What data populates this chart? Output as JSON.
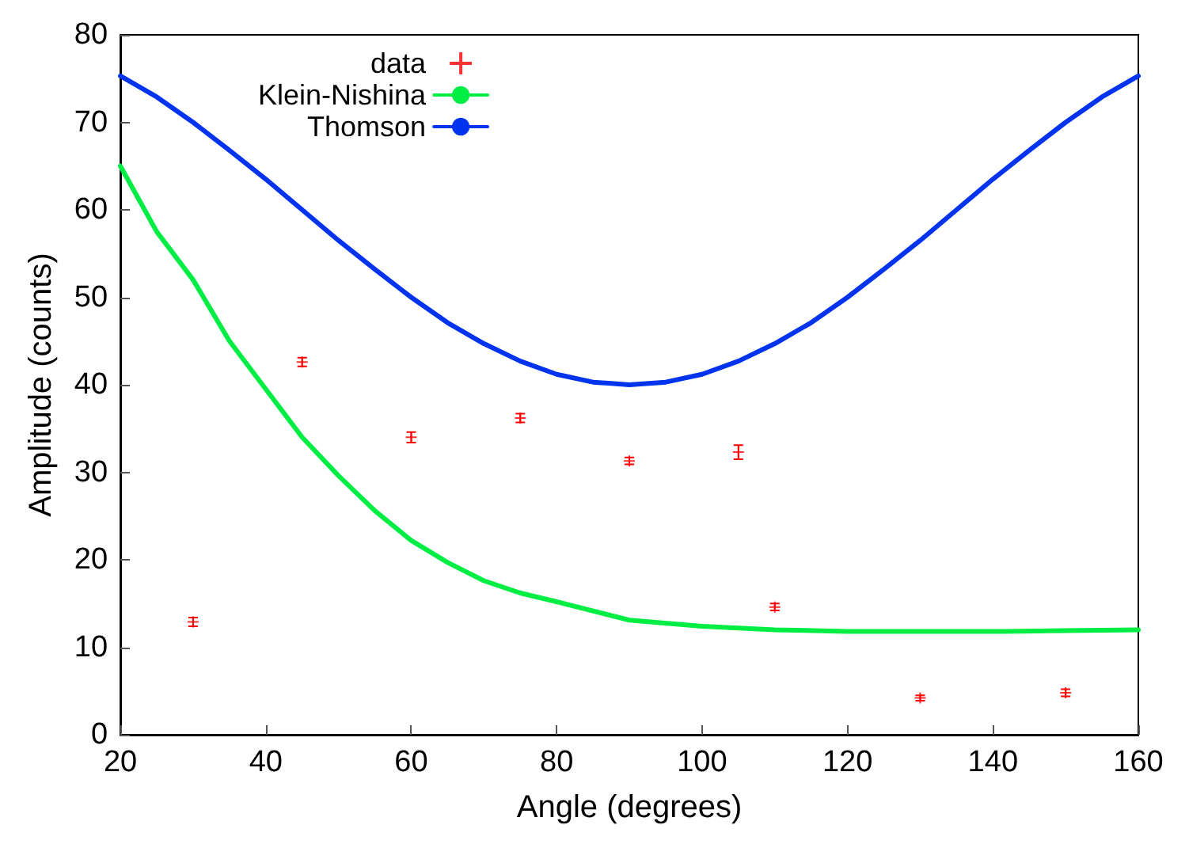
{
  "chart_data": {
    "type": "line",
    "xlabel": "Angle (degrees)",
    "ylabel": "Amplitude (counts)",
    "xlim": [
      20,
      160
    ],
    "xticks": [
      20,
      40,
      60,
      80,
      100,
      120,
      140,
      160
    ],
    "ylim": [
      0,
      80
    ],
    "yticks": [
      0,
      10,
      20,
      30,
      40,
      50,
      60,
      70,
      80
    ],
    "grid": false,
    "legend": "top left",
    "series": [
      {
        "name": "data",
        "type": "scatter",
        "color": "#ff0000",
        "marker": "cross",
        "x": [
          30,
          45,
          60,
          75,
          90,
          105,
          110,
          130,
          150
        ],
        "values": [
          12.9,
          42.6,
          34.0,
          36.2,
          31.3,
          32.3,
          14.6,
          4.2,
          4.8
        ],
        "errors": [
          0.5,
          0.5,
          0.6,
          0.5,
          0.4,
          0.8,
          0.4,
          0.3,
          0.4
        ]
      },
      {
        "name": "Klein-Nishina",
        "color": "#00ee44",
        "line_style": "solid",
        "marker": "none",
        "x": [
          20,
          25,
          30,
          35,
          40,
          45,
          50,
          55,
          60,
          65,
          70,
          75,
          80,
          90,
          100,
          110,
          120,
          130,
          140,
          150,
          160
        ],
        "values": [
          65,
          57.5,
          52,
          45,
          39.5,
          34,
          29.6,
          25.6,
          22.2,
          19.7,
          17.6,
          16.2,
          15.2,
          13.1,
          12.4,
          12.0,
          11.8,
          11.8,
          11.8,
          11.9,
          12.0
        ]
      },
      {
        "name": "Thomson",
        "color": "#0033ee",
        "line_style": "solid",
        "marker": "none",
        "x": [
          20,
          25,
          30,
          35,
          40,
          45,
          50,
          55,
          60,
          65,
          70,
          75,
          80,
          85,
          90,
          95,
          100,
          105,
          110,
          115,
          120,
          125,
          130,
          135,
          140,
          145,
          150,
          155,
          160
        ],
        "values": [
          75.3,
          72.9,
          70.0,
          66.8,
          63.5,
          60.0,
          56.5,
          53.2,
          50.0,
          47.1,
          44.7,
          42.7,
          41.2,
          40.3,
          40.0,
          40.3,
          41.2,
          42.7,
          44.7,
          47.1,
          50.0,
          53.2,
          56.5,
          60.0,
          63.5,
          66.8,
          70.0,
          72.9,
          75.3
        ]
      }
    ]
  }
}
